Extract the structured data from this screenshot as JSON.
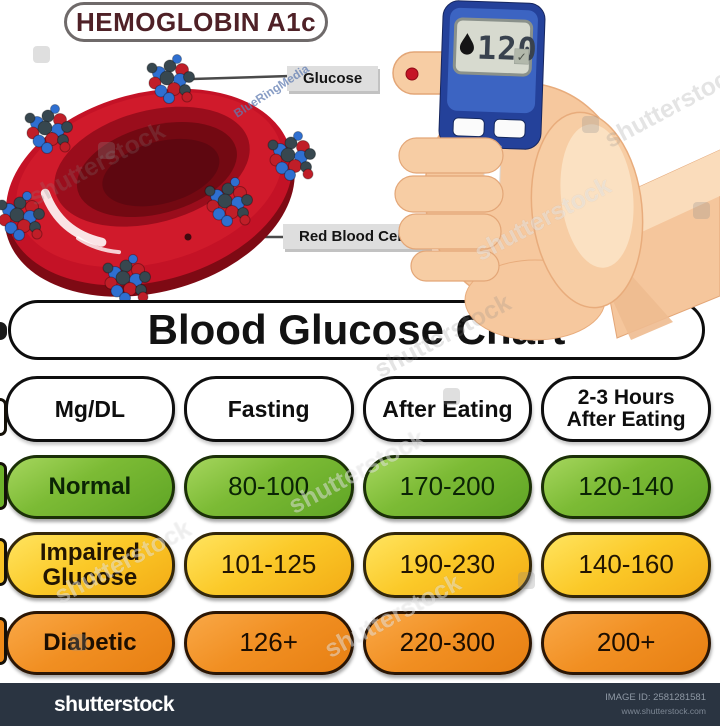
{
  "header": {
    "title": "HEMOGLOBIN A1c"
  },
  "illustration": {
    "glucose_label": "Glucose",
    "red_blood_cells_label": "Red Blood Cells",
    "meter": {
      "reading": "120",
      "check_icon": "✓"
    }
  },
  "chart_data": {
    "type": "table",
    "title": "Blood Glucose Chart",
    "columns": [
      "Mg/DL",
      "Fasting",
      "After Eating",
      "2-3 Hours After Eating"
    ],
    "rows": [
      {
        "label": "Normal",
        "values": [
          "80-100",
          "170-200",
          "120-140"
        ],
        "color": "#6FB32B"
      },
      {
        "label": "Impaired Glucose",
        "values": [
          "101-125",
          "190-230",
          "140-160"
        ],
        "color": "#F8C426"
      },
      {
        "label": "Diabetic",
        "values": [
          "126+",
          "220-300",
          "200+"
        ],
        "color": "#EF8A18"
      }
    ]
  },
  "watermarks": {
    "stock": "shutterstock",
    "credit": "BlueRingMedia"
  },
  "footer": {
    "logo": "shutterstock",
    "image_id": "IMAGE ID: 2581281581",
    "site": "www.shutterstock.com"
  }
}
